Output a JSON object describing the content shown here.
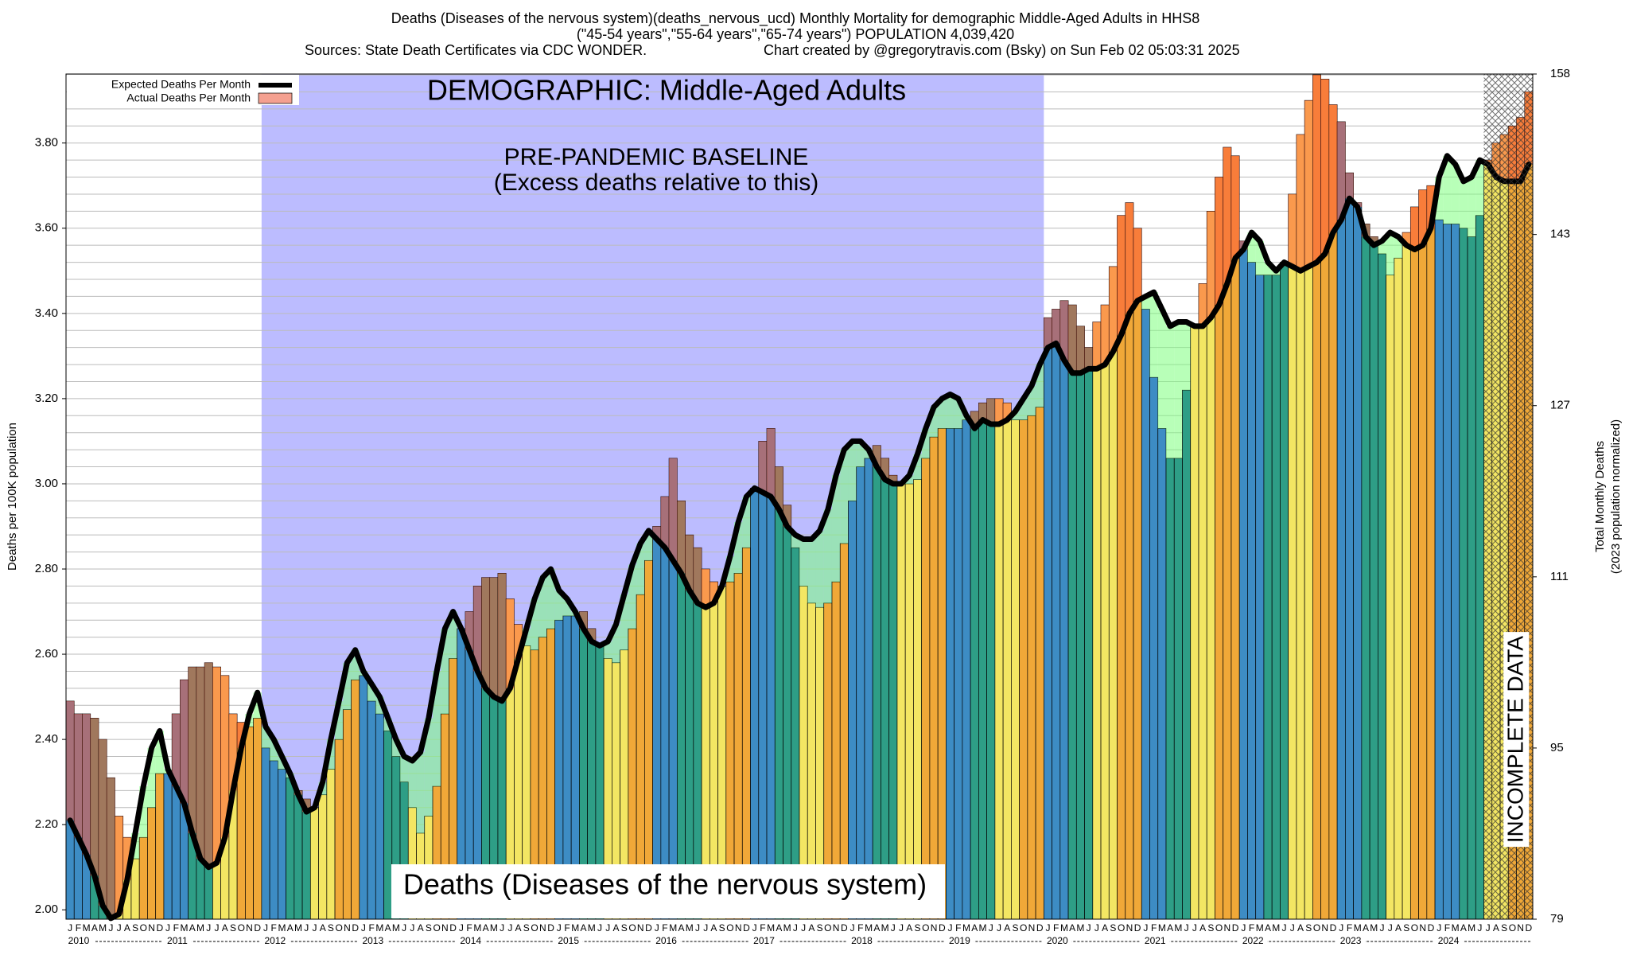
{
  "chart_data": {
    "type": "bar",
    "title_lines": [
      "Deaths (Diseases of the nervous system)(deaths_nervous_ucd) Monthly Mortality for demographic Middle-Aged Adults in HHS8",
      "(\"45-54 years\",\"55-64 years\",\"65-74 years\") POPULATION 4,039,420"
    ],
    "source": "Sources: State Death Certificates via CDC WONDER.",
    "credit": "Chart created by @gregorytravis.com (Bsky) on Sun Feb 02 05:03:31 2025",
    "ylabel": "Deaths per 100K population",
    "y2label_lines": [
      "Total Monthly Deaths",
      "(2023 population normalized)"
    ],
    "annotations": {
      "demographic": "DEMOGRAPHIC: Middle-Aged Adults",
      "baseline": "PRE-PANDEMIC BASELINE",
      "baseline_note": "(Excess deaths relative to this)",
      "cause": "Deaths (Diseases of the nervous system)",
      "incomplete": "INCOMPLETE DATA"
    },
    "month_labels": [
      "J",
      "F",
      "M",
      "A",
      "M",
      "J",
      "J",
      "A",
      "S",
      "O",
      "N",
      "D"
    ],
    "years": [
      2010,
      2011,
      2012,
      2013,
      2014,
      2015,
      2016,
      2017,
      2018,
      2019,
      2020,
      2021,
      2022,
      2023,
      2024
    ],
    "bar_colors": [
      "#3d8cc4",
      "#3d8cc4",
      "#3d8cc4",
      "#2e9e86",
      "#2e9e86",
      "#2e9e86",
      "#f3e663",
      "#f3e663",
      "#f3e663",
      "#f0a838",
      "#f0a838",
      "#f0a838"
    ],
    "excess_color": "#ff5a3c",
    "deficit_color": "#7dff7d",
    "baseline_years": [
      2012,
      2019
    ],
    "baseline_color": "#bcbcff",
    "incomplete_months": 6,
    "series": [
      {
        "name": "Actual Deaths Per Month",
        "color": "#f4a090",
        "values": [
          2.49,
          2.46,
          2.46,
          2.45,
          2.4,
          2.31,
          2.22,
          2.17,
          2.12,
          2.17,
          2.24,
          2.32,
          2.32,
          2.46,
          2.54,
          2.57,
          2.57,
          2.58,
          2.57,
          2.55,
          2.46,
          2.44,
          2.43,
          2.45,
          2.38,
          2.35,
          2.33,
          2.31,
          2.28,
          2.26,
          2.24,
          2.27,
          2.33,
          2.4,
          2.47,
          2.54,
          2.55,
          2.49,
          2.46,
          2.42,
          2.36,
          2.3,
          2.24,
          2.18,
          2.22,
          2.29,
          2.46,
          2.59,
          2.66,
          2.7,
          2.76,
          2.78,
          2.78,
          2.79,
          2.73,
          2.67,
          2.62,
          2.61,
          2.64,
          2.66,
          2.68,
          2.69,
          2.69,
          2.7,
          2.66,
          2.62,
          2.59,
          2.58,
          2.61,
          2.66,
          2.74,
          2.82,
          2.9,
          2.97,
          3.06,
          2.96,
          2.88,
          2.85,
          2.8,
          2.77,
          2.76,
          2.77,
          2.79,
          2.85,
          2.99,
          3.1,
          3.13,
          3.04,
          2.95,
          2.85,
          2.76,
          2.72,
          2.71,
          2.72,
          2.77,
          2.86,
          2.96,
          3.04,
          3.06,
          3.09,
          3.06,
          3.02,
          3.0,
          3.0,
          3.01,
          3.06,
          3.11,
          3.13,
          3.13,
          3.13,
          3.15,
          3.17,
          3.19,
          3.2,
          3.2,
          3.19,
          3.15,
          3.15,
          3.16,
          3.18,
          3.39,
          3.41,
          3.43,
          3.42,
          3.37,
          3.32,
          3.38,
          3.42,
          3.51,
          3.63,
          3.66,
          3.6,
          3.41,
          3.25,
          3.13,
          3.06,
          3.06,
          3.22,
          3.37,
          3.47,
          3.64,
          3.72,
          3.79,
          3.77,
          3.57,
          3.52,
          3.49,
          3.49,
          3.49,
          3.52,
          3.68,
          3.82,
          3.9,
          3.96,
          3.95,
          3.89,
          3.85,
          3.73,
          3.66,
          3.61,
          3.58,
          3.54,
          3.49,
          3.53,
          3.59,
          3.65,
          3.69,
          3.7,
          3.62,
          3.61,
          3.61,
          3.6,
          3.58,
          3.63,
          3.76,
          3.8,
          3.82,
          3.84,
          3.86,
          3.92
        ]
      },
      {
        "name": "Expected Deaths Per Month",
        "color": "#000000",
        "values": [
          2.21,
          2.17,
          2.13,
          2.08,
          2.01,
          1.98,
          1.99,
          2.07,
          2.18,
          2.29,
          2.38,
          2.42,
          2.33,
          2.29,
          2.25,
          2.18,
          2.12,
          2.1,
          2.11,
          2.17,
          2.28,
          2.38,
          2.46,
          2.51,
          2.43,
          2.4,
          2.36,
          2.32,
          2.27,
          2.23,
          2.24,
          2.3,
          2.4,
          2.49,
          2.58,
          2.61,
          2.56,
          2.53,
          2.5,
          2.45,
          2.4,
          2.36,
          2.35,
          2.37,
          2.45,
          2.56,
          2.66,
          2.7,
          2.66,
          2.61,
          2.56,
          2.52,
          2.5,
          2.49,
          2.52,
          2.59,
          2.66,
          2.73,
          2.78,
          2.8,
          2.75,
          2.73,
          2.7,
          2.66,
          2.63,
          2.62,
          2.63,
          2.67,
          2.74,
          2.81,
          2.86,
          2.89,
          2.87,
          2.85,
          2.82,
          2.79,
          2.75,
          2.72,
          2.71,
          2.72,
          2.76,
          2.83,
          2.91,
          2.97,
          2.99,
          2.98,
          2.97,
          2.94,
          2.9,
          2.88,
          2.87,
          2.87,
          2.89,
          2.94,
          3.02,
          3.08,
          3.1,
          3.1,
          3.08,
          3.04,
          3.01,
          3.0,
          3.0,
          3.02,
          3.07,
          3.13,
          3.18,
          3.2,
          3.21,
          3.2,
          3.16,
          3.13,
          3.15,
          3.14,
          3.14,
          3.15,
          3.17,
          3.2,
          3.23,
          3.28,
          3.32,
          3.33,
          3.29,
          3.26,
          3.26,
          3.27,
          3.27,
          3.28,
          3.31,
          3.35,
          3.4,
          3.43,
          3.44,
          3.45,
          3.41,
          3.37,
          3.38,
          3.38,
          3.37,
          3.37,
          3.39,
          3.42,
          3.47,
          3.53,
          3.55,
          3.59,
          3.57,
          3.52,
          3.5,
          3.52,
          3.51,
          3.5,
          3.51,
          3.52,
          3.54,
          3.59,
          3.62,
          3.67,
          3.65,
          3.58,
          3.56,
          3.57,
          3.59,
          3.58,
          3.56,
          3.55,
          3.56,
          3.6,
          3.72,
          3.77,
          3.75,
          3.71,
          3.72,
          3.76,
          3.75,
          3.72,
          3.71,
          3.71,
          3.71,
          3.75
        ]
      }
    ],
    "ylim": [
      1.978,
      3.962
    ],
    "yticks": [
      {
        "value": 2.0,
        "label": "2.00"
      },
      {
        "value": 2.2,
        "label": "2.20"
      },
      {
        "value": 2.4,
        "label": "2.40"
      },
      {
        "value": 2.6,
        "label": "2.60"
      },
      {
        "value": 2.8,
        "label": "2.80"
      },
      {
        "value": 3.0,
        "label": "3.00"
      },
      {
        "value": 3.2,
        "label": "3.20"
      },
      {
        "value": 3.4,
        "label": "3.40"
      },
      {
        "value": 3.6,
        "label": "3.60"
      },
      {
        "value": 3.8,
        "label": "3.80"
      }
    ],
    "minor_gridlines": [
      2.0,
      2.04,
      2.08,
      2.12,
      2.16,
      2.2,
      2.24,
      2.28,
      2.32,
      2.36,
      2.4,
      2.44,
      2.48,
      2.52,
      2.56,
      2.6,
      2.64,
      2.68,
      2.72,
      2.76,
      2.8,
      2.84,
      2.88,
      2.92,
      2.96,
      3.0,
      3.04,
      3.08,
      3.12,
      3.16,
      3.2,
      3.24,
      3.28,
      3.32,
      3.36,
      3.4,
      3.44,
      3.48,
      3.52,
      3.56,
      3.6,
      3.64,
      3.68,
      3.72,
      3.76,
      3.8,
      3.84,
      3.88,
      3.92,
      3.96
    ],
    "y2lim": [
      79,
      158
    ],
    "y2ticks": [
      79,
      95,
      111,
      127,
      143,
      158
    ],
    "grid": true
  }
}
